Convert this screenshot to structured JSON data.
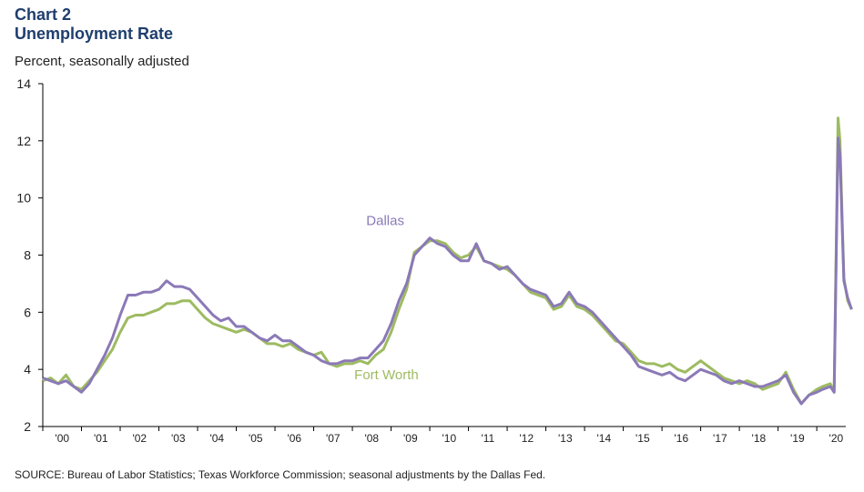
{
  "header": {
    "chart_label": "Chart 2",
    "title": "Unemployment Rate",
    "units": "Percent, seasonally adjusted"
  },
  "footer": {
    "source": "SOURCE: Bureau of Labor Statistics; Texas Workforce Commission; seasonal adjustments by the Dallas Fed."
  },
  "chart_data": {
    "type": "line",
    "title": "Unemployment Rate",
    "ylabel": "Percent, seasonally adjusted",
    "ylim": [
      2,
      14
    ],
    "yticks": [
      2,
      4,
      6,
      8,
      10,
      12,
      14
    ],
    "xlim": [
      2000,
      2020.7
    ],
    "xticks": [
      "'00",
      "'01",
      "'02",
      "'03",
      "'04",
      "'05",
      "'06",
      "'07",
      "'08",
      "'09",
      "'10",
      "'11",
      "'12",
      "'13",
      "'14",
      "'15",
      "'16",
      "'17",
      "'18",
      "'19",
      "'20"
    ],
    "grid": false,
    "legend": "inline labels",
    "series": [
      {
        "name": "Fort Worth",
        "color": "#9dbb61",
        "points": [
          [
            2000.0,
            3.6
          ],
          [
            2000.2,
            3.7
          ],
          [
            2000.4,
            3.5
          ],
          [
            2000.6,
            3.8
          ],
          [
            2000.8,
            3.4
          ],
          [
            2001.0,
            3.3
          ],
          [
            2001.2,
            3.6
          ],
          [
            2001.4,
            3.9
          ],
          [
            2001.6,
            4.3
          ],
          [
            2001.8,
            4.7
          ],
          [
            2002.0,
            5.3
          ],
          [
            2002.2,
            5.8
          ],
          [
            2002.4,
            5.9
          ],
          [
            2002.6,
            5.9
          ],
          [
            2002.8,
            6.0
          ],
          [
            2003.0,
            6.1
          ],
          [
            2003.2,
            6.3
          ],
          [
            2003.4,
            6.3
          ],
          [
            2003.6,
            6.4
          ],
          [
            2003.8,
            6.4
          ],
          [
            2004.0,
            6.1
          ],
          [
            2004.2,
            5.8
          ],
          [
            2004.4,
            5.6
          ],
          [
            2004.6,
            5.5
          ],
          [
            2004.8,
            5.4
          ],
          [
            2005.0,
            5.3
          ],
          [
            2005.2,
            5.4
          ],
          [
            2005.4,
            5.3
          ],
          [
            2005.6,
            5.1
          ],
          [
            2005.8,
            4.9
          ],
          [
            2006.0,
            4.9
          ],
          [
            2006.2,
            4.8
          ],
          [
            2006.4,
            4.9
          ],
          [
            2006.6,
            4.7
          ],
          [
            2006.8,
            4.6
          ],
          [
            2007.0,
            4.5
          ],
          [
            2007.2,
            4.6
          ],
          [
            2007.4,
            4.2
          ],
          [
            2007.6,
            4.1
          ],
          [
            2007.8,
            4.2
          ],
          [
            2008.0,
            4.2
          ],
          [
            2008.2,
            4.3
          ],
          [
            2008.4,
            4.2
          ],
          [
            2008.6,
            4.5
          ],
          [
            2008.8,
            4.7
          ],
          [
            2009.0,
            5.3
          ],
          [
            2009.2,
            6.1
          ],
          [
            2009.4,
            6.8
          ],
          [
            2009.6,
            8.1
          ],
          [
            2009.8,
            8.3
          ],
          [
            2010.0,
            8.5
          ],
          [
            2010.2,
            8.5
          ],
          [
            2010.4,
            8.4
          ],
          [
            2010.6,
            8.1
          ],
          [
            2010.8,
            7.9
          ],
          [
            2011.0,
            8.0
          ],
          [
            2011.2,
            8.3
          ],
          [
            2011.4,
            7.8
          ],
          [
            2011.6,
            7.7
          ],
          [
            2011.8,
            7.6
          ],
          [
            2012.0,
            7.5
          ],
          [
            2012.2,
            7.3
          ],
          [
            2012.4,
            7.0
          ],
          [
            2012.6,
            6.7
          ],
          [
            2012.8,
            6.6
          ],
          [
            2013.0,
            6.5
          ],
          [
            2013.2,
            6.1
          ],
          [
            2013.4,
            6.2
          ],
          [
            2013.6,
            6.6
          ],
          [
            2013.8,
            6.2
          ],
          [
            2014.0,
            6.1
          ],
          [
            2014.2,
            5.9
          ],
          [
            2014.4,
            5.6
          ],
          [
            2014.6,
            5.3
          ],
          [
            2014.8,
            5.0
          ],
          [
            2015.0,
            4.9
          ],
          [
            2015.2,
            4.6
          ],
          [
            2015.4,
            4.3
          ],
          [
            2015.6,
            4.2
          ],
          [
            2015.8,
            4.2
          ],
          [
            2016.0,
            4.1
          ],
          [
            2016.2,
            4.2
          ],
          [
            2016.4,
            4.0
          ],
          [
            2016.6,
            3.9
          ],
          [
            2016.8,
            4.1
          ],
          [
            2017.0,
            4.3
          ],
          [
            2017.2,
            4.1
          ],
          [
            2017.4,
            3.9
          ],
          [
            2017.6,
            3.7
          ],
          [
            2017.8,
            3.6
          ],
          [
            2018.0,
            3.5
          ],
          [
            2018.2,
            3.6
          ],
          [
            2018.4,
            3.5
          ],
          [
            2018.6,
            3.3
          ],
          [
            2018.8,
            3.4
          ],
          [
            2019.0,
            3.5
          ],
          [
            2019.2,
            3.9
          ],
          [
            2019.4,
            3.3
          ],
          [
            2019.6,
            2.8
          ],
          [
            2019.8,
            3.1
          ],
          [
            2020.0,
            3.3
          ],
          [
            2020.15,
            3.4
          ],
          [
            2020.35,
            3.5
          ],
          [
            2020.45,
            3.2
          ],
          [
            2020.55,
            12.8
          ],
          [
            2020.6,
            12.0
          ],
          [
            2020.7,
            7.2
          ],
          [
            2020.8,
            6.4
          ],
          [
            2020.9,
            6.1
          ]
        ]
      },
      {
        "name": "Dallas",
        "color": "#8b79b7",
        "points": [
          [
            2000.0,
            3.7
          ],
          [
            2000.2,
            3.6
          ],
          [
            2000.4,
            3.5
          ],
          [
            2000.6,
            3.6
          ],
          [
            2000.8,
            3.4
          ],
          [
            2001.0,
            3.2
          ],
          [
            2001.2,
            3.5
          ],
          [
            2001.4,
            4.0
          ],
          [
            2001.6,
            4.5
          ],
          [
            2001.8,
            5.1
          ],
          [
            2002.0,
            5.9
          ],
          [
            2002.2,
            6.6
          ],
          [
            2002.4,
            6.6
          ],
          [
            2002.6,
            6.7
          ],
          [
            2002.8,
            6.7
          ],
          [
            2003.0,
            6.8
          ],
          [
            2003.2,
            7.1
          ],
          [
            2003.4,
            6.9
          ],
          [
            2003.6,
            6.9
          ],
          [
            2003.8,
            6.8
          ],
          [
            2004.0,
            6.5
          ],
          [
            2004.2,
            6.2
          ],
          [
            2004.4,
            5.9
          ],
          [
            2004.6,
            5.7
          ],
          [
            2004.8,
            5.8
          ],
          [
            2005.0,
            5.5
          ],
          [
            2005.2,
            5.5
          ],
          [
            2005.4,
            5.3
          ],
          [
            2005.6,
            5.1
          ],
          [
            2005.8,
            5.0
          ],
          [
            2006.0,
            5.2
          ],
          [
            2006.2,
            5.0
          ],
          [
            2006.4,
            5.0
          ],
          [
            2006.6,
            4.8
          ],
          [
            2006.8,
            4.6
          ],
          [
            2007.0,
            4.5
          ],
          [
            2007.2,
            4.3
          ],
          [
            2007.4,
            4.2
          ],
          [
            2007.6,
            4.2
          ],
          [
            2007.8,
            4.3
          ],
          [
            2008.0,
            4.3
          ],
          [
            2008.2,
            4.4
          ],
          [
            2008.4,
            4.4
          ],
          [
            2008.6,
            4.7
          ],
          [
            2008.8,
            5.0
          ],
          [
            2009.0,
            5.6
          ],
          [
            2009.2,
            6.4
          ],
          [
            2009.4,
            7.0
          ],
          [
            2009.6,
            8.0
          ],
          [
            2009.8,
            8.3
          ],
          [
            2010.0,
            8.6
          ],
          [
            2010.2,
            8.4
          ],
          [
            2010.4,
            8.3
          ],
          [
            2010.6,
            8.0
          ],
          [
            2010.8,
            7.8
          ],
          [
            2011.0,
            7.8
          ],
          [
            2011.2,
            8.4
          ],
          [
            2011.4,
            7.8
          ],
          [
            2011.6,
            7.7
          ],
          [
            2011.8,
            7.5
          ],
          [
            2012.0,
            7.6
          ],
          [
            2012.2,
            7.3
          ],
          [
            2012.4,
            7.0
          ],
          [
            2012.6,
            6.8
          ],
          [
            2012.8,
            6.7
          ],
          [
            2013.0,
            6.6
          ],
          [
            2013.2,
            6.2
          ],
          [
            2013.4,
            6.3
          ],
          [
            2013.6,
            6.7
          ],
          [
            2013.8,
            6.3
          ],
          [
            2014.0,
            6.2
          ],
          [
            2014.2,
            6.0
          ],
          [
            2014.4,
            5.7
          ],
          [
            2014.6,
            5.4
          ],
          [
            2014.8,
            5.1
          ],
          [
            2015.0,
            4.8
          ],
          [
            2015.2,
            4.5
          ],
          [
            2015.4,
            4.1
          ],
          [
            2015.6,
            4.0
          ],
          [
            2015.8,
            3.9
          ],
          [
            2016.0,
            3.8
          ],
          [
            2016.2,
            3.9
          ],
          [
            2016.4,
            3.7
          ],
          [
            2016.6,
            3.6
          ],
          [
            2016.8,
            3.8
          ],
          [
            2017.0,
            4.0
          ],
          [
            2017.2,
            3.9
          ],
          [
            2017.4,
            3.8
          ],
          [
            2017.6,
            3.6
          ],
          [
            2017.8,
            3.5
          ],
          [
            2018.0,
            3.6
          ],
          [
            2018.2,
            3.5
          ],
          [
            2018.4,
            3.4
          ],
          [
            2018.6,
            3.4
          ],
          [
            2018.8,
            3.5
          ],
          [
            2019.0,
            3.6
          ],
          [
            2019.2,
            3.8
          ],
          [
            2019.4,
            3.2
          ],
          [
            2019.6,
            2.8
          ],
          [
            2019.8,
            3.1
          ],
          [
            2020.0,
            3.2
          ],
          [
            2020.15,
            3.3
          ],
          [
            2020.35,
            3.4
          ],
          [
            2020.45,
            3.2
          ],
          [
            2020.55,
            12.1
          ],
          [
            2020.6,
            11.5
          ],
          [
            2020.7,
            7.1
          ],
          [
            2020.8,
            6.5
          ],
          [
            2020.9,
            6.1
          ]
        ]
      }
    ]
  }
}
